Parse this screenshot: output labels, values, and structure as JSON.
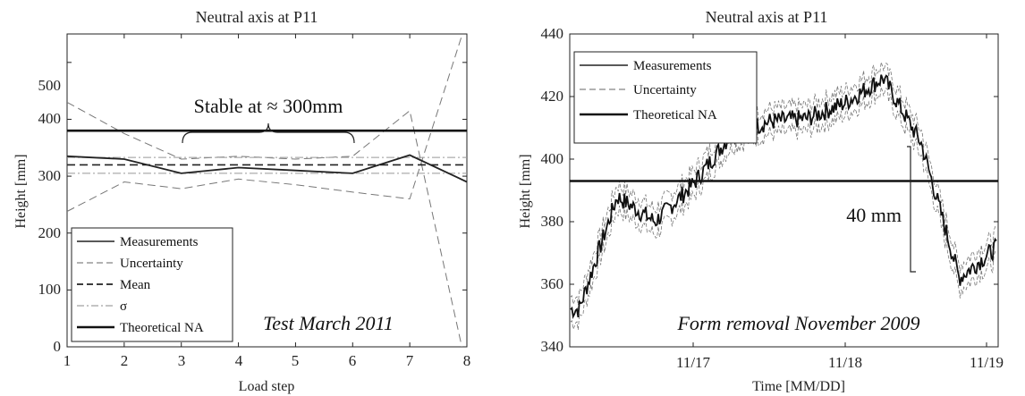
{
  "chart_data": [
    {
      "type": "line",
      "title": "Neutral axis at P11",
      "xlabel": "Load step",
      "ylabel": "Height [mm]",
      "xlim": [
        1,
        8
      ],
      "ylim": [
        0,
        550
      ],
      "x_ticks": [
        "1",
        "2",
        "3",
        "4",
        "5",
        "6",
        "7",
        "8"
      ],
      "y_ticks": [
        "0",
        "100",
        "200",
        "300",
        "400",
        "500"
      ],
      "x": [
        1,
        2,
        3,
        4,
        5,
        6,
        7,
        8
      ],
      "series": [
        {
          "name": "Measurements",
          "values": [
            335,
            330,
            305,
            315,
            310,
            305,
            337,
            290
          ]
        },
        {
          "name": "Uncertainty",
          "values": [
            430,
            375,
            330,
            335,
            330,
            335,
            415,
            -40
          ]
        },
        {
          "name": "Uncertainty",
          "values": [
            238,
            290,
            278,
            295,
            285,
            272,
            260,
            575
          ]
        },
        {
          "name": "Mean",
          "values": [
            320,
            320,
            320,
            320,
            320,
            320,
            320,
            320
          ]
        },
        {
          "name": "σ",
          "values": [
            333,
            333,
            333,
            333,
            333,
            333,
            333,
            333
          ]
        },
        {
          "name": "σ",
          "values": [
            305,
            305,
            305,
            305,
            305,
            305,
            305,
            305
          ]
        },
        {
          "name": "Theoretical NA",
          "values": [
            380,
            380,
            380,
            380,
            380,
            380,
            380,
            380
          ]
        }
      ],
      "legend": [
        "Measurements",
        "Uncertainty",
        "Mean",
        "σ",
        "Theoretical NA"
      ],
      "legend_position": "bottom-left",
      "annotation_stable": "Stable at ≈ 300mm",
      "annotation_test": "Test March 2011"
    },
    {
      "type": "line",
      "title": "Neutral axis at P11",
      "xlabel": "Time [MM/DD]",
      "ylabel": "Height [mm]",
      "ylim": [
        340,
        440
      ],
      "x_ticks": [
        "11/17",
        "11/18",
        "11/19"
      ],
      "y_ticks": [
        "340",
        "360",
        "380",
        "400",
        "420",
        "440"
      ],
      "x": [
        "11/16 06:00",
        "11/16 12:00",
        "11/16 18:00",
        "11/17 00:00",
        "11/17 06:00",
        "11/17 12:00",
        "11/17 18:00",
        "11/18 00:00",
        "11/18 06:00",
        "11/18 12:00",
        "11/18 18:00",
        "11/19 00:00"
      ],
      "series": [
        {
          "name": "Measurements",
          "values": [
            352,
            388,
            380,
            392,
            408,
            412,
            413,
            418,
            426,
            405,
            362,
            372
          ]
        },
        {
          "name": "Theoretical NA",
          "values": [
            393,
            393,
            393,
            393,
            393,
            393,
            393,
            393,
            393,
            393,
            393,
            393
          ]
        }
      ],
      "legend": [
        "Measurements",
        "Uncertainty",
        "Theoretical NA"
      ],
      "legend_position": "top-left",
      "annotation_drop": "40 mm",
      "annotation_form": "Form removal November 2009"
    }
  ]
}
